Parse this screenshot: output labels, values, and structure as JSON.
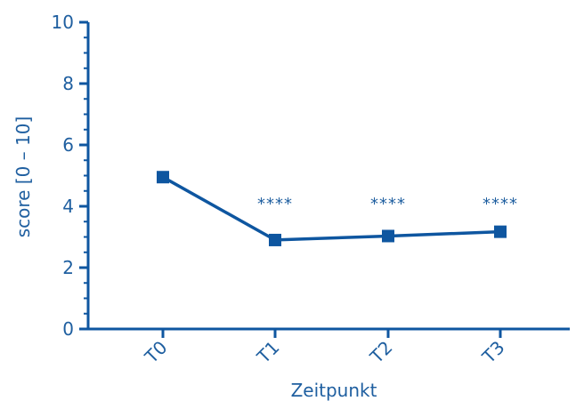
{
  "chart_data": {
    "type": "line",
    "title": "",
    "xlabel": "Zeitpunkt",
    "ylabel": "score [0 – 10]",
    "categories": [
      "T0",
      "T1",
      "T2",
      "T3"
    ],
    "series": [
      {
        "values": [
          4.95,
          2.9,
          3.03,
          3.17
        ]
      }
    ],
    "ylim": [
      0,
      10
    ],
    "yticks": [
      "0",
      "2",
      "4",
      "6",
      "8",
      "10"
    ],
    "annotations": [
      "",
      "****",
      "****",
      "****"
    ],
    "grid": false,
    "legend": "none",
    "color": "#0e56a0",
    "text_color": "#1f5fa0"
  }
}
